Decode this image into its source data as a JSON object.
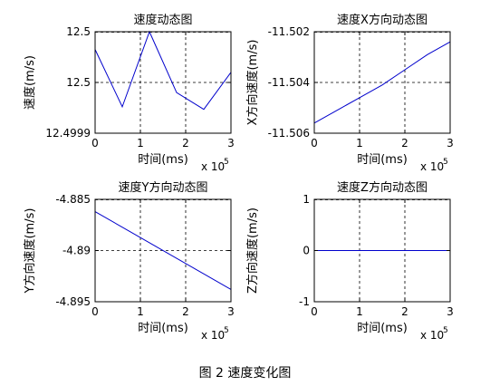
{
  "figure_caption": "图 2  速度变化图",
  "line_color": "#0000cc",
  "chart_data": [
    {
      "type": "line",
      "title": "速度动态图",
      "xlabel": "时间(ms)",
      "ylabel": "速度(m/s)",
      "x_exponent_label": "x 10",
      "x_exponent_power": "5",
      "xlim": [
        0,
        3
      ],
      "ylim": [
        12.4999,
        12.5001
      ],
      "xticks": [
        "0",
        "1",
        "2",
        "3"
      ],
      "yticks": [
        {
          "value": 12.5001,
          "label": "12.5"
        },
        {
          "value": 12.5,
          "label": "12.5"
        },
        {
          "value": 12.4999,
          "label": "12.4999"
        }
      ],
      "grid": true,
      "x": [
        0,
        0.6,
        1.2,
        1.8,
        2.4,
        3.0
      ],
      "y": [
        12.500065,
        12.499952,
        12.5001,
        12.49998,
        12.499947,
        12.50002
      ]
    },
    {
      "type": "line",
      "title": "速度X方向动态图",
      "xlabel": "时间(ms)",
      "ylabel": "X方向速度(m/s)",
      "x_exponent_label": "x 10",
      "x_exponent_power": "5",
      "xlim": [
        0,
        3
      ],
      "ylim": [
        -11.506,
        -11.502
      ],
      "xticks": [
        "0",
        "1",
        "2",
        "3"
      ],
      "yticks": [
        {
          "value": -11.502,
          "label": "-11.502"
        },
        {
          "value": -11.504,
          "label": "-11.504"
        },
        {
          "value": -11.506,
          "label": "-11.506"
        }
      ],
      "grid": true,
      "x": [
        0,
        0.5,
        1.0,
        1.5,
        2.0,
        2.5,
        3.0
      ],
      "y": [
        -11.5056,
        -11.5051,
        -11.5046,
        -11.5041,
        -11.5035,
        -11.5029,
        -11.5024
      ]
    },
    {
      "type": "line",
      "title": "速度Y方向动态图",
      "xlabel": "时间(ms)",
      "ylabel": "Y方向速度(m/s)",
      "x_exponent_label": "x 10",
      "x_exponent_power": "5",
      "xlim": [
        0,
        3
      ],
      "ylim": [
        -4.895,
        -4.885
      ],
      "xticks": [
        "0",
        "1",
        "2",
        "3"
      ],
      "yticks": [
        {
          "value": -4.885,
          "label": "-4.885"
        },
        {
          "value": -4.89,
          "label": "-4.89"
        },
        {
          "value": -4.895,
          "label": "-4.895"
        }
      ],
      "grid": true,
      "x": [
        0,
        3.0
      ],
      "y": [
        -4.8862,
        -4.8938
      ]
    },
    {
      "type": "line",
      "title": "速度Z方向动态图",
      "xlabel": "时间(ms)",
      "ylabel": "Z方向速度(m/s)",
      "x_exponent_label": "x 10",
      "x_exponent_power": "5",
      "xlim": [
        0,
        3
      ],
      "ylim": [
        -1,
        1
      ],
      "xticks": [
        "0",
        "1",
        "2",
        "3"
      ],
      "yticks": [
        {
          "value": 1,
          "label": "1"
        },
        {
          "value": 0,
          "label": "0"
        },
        {
          "value": -1,
          "label": "-1"
        }
      ],
      "grid": true,
      "x": [
        0,
        3.0
      ],
      "y": [
        0,
        0
      ]
    }
  ]
}
